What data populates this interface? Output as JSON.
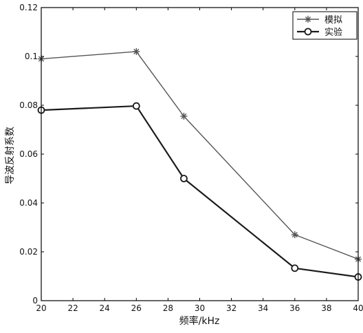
{
  "chart_data": {
    "type": "line",
    "title": "",
    "xlabel": "频率/kHz",
    "ylabel": "导波反射系数",
    "x": [
      20,
      26,
      29,
      36,
      40
    ],
    "xlim": [
      20,
      40
    ],
    "ylim": [
      0,
      0.12
    ],
    "xticks": [
      "20",
      "22",
      "24",
      "26",
      "28",
      "30",
      "32",
      "34",
      "36",
      "38",
      "40"
    ],
    "yticks": [
      "0",
      "0.02",
      "0.04",
      "0.06",
      "0.08",
      "0.1",
      "0.12"
    ],
    "grid": false,
    "legend_position": "top-right",
    "series": [
      {
        "name": "模拟",
        "marker": "asterisk",
        "color": "#555555",
        "values": [
          0.099,
          0.102,
          0.0755,
          0.027,
          0.017
        ]
      },
      {
        "name": "实验",
        "marker": "circle",
        "color": "#1a1a1a",
        "values": [
          0.078,
          0.0797,
          0.05,
          0.0133,
          0.0097
        ]
      }
    ]
  }
}
